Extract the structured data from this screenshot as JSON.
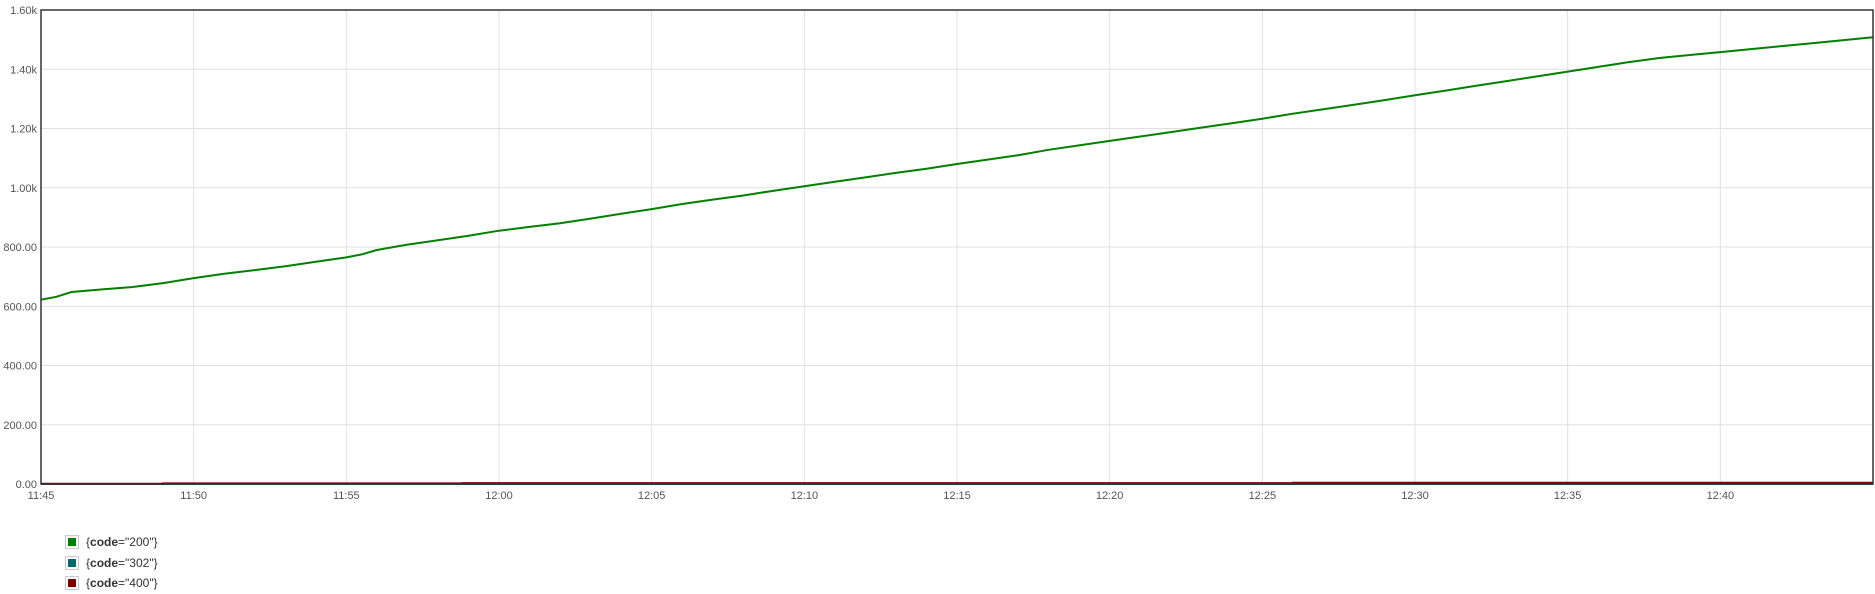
{
  "chart_data": {
    "type": "line",
    "x_ticks": [
      "11:45",
      "11:50",
      "11:55",
      "12:00",
      "12:05",
      "12:10",
      "12:15",
      "12:20",
      "12:25",
      "12:30",
      "12:35",
      "12:40"
    ],
    "y_ticks": [
      "0.00",
      "200.00",
      "400.00",
      "600.00",
      "800.00",
      "1.00k",
      "1.20k",
      "1.40k",
      "1.60k"
    ],
    "xlim_minutes": [
      0,
      60
    ],
    "ylim": [
      0,
      1600
    ],
    "grid": true,
    "legend_placement": "bottom-left",
    "series": [
      {
        "label_key": "code",
        "label_value": "\"200\"",
        "color": "#008000",
        "points": [
          [
            0,
            622
          ],
          [
            0.5,
            632
          ],
          [
            1,
            648
          ],
          [
            2,
            657
          ],
          [
            3,
            665
          ],
          [
            4,
            678
          ],
          [
            5,
            695
          ],
          [
            6,
            710
          ],
          [
            7,
            722
          ],
          [
            8,
            735
          ],
          [
            9,
            750
          ],
          [
            10,
            765
          ],
          [
            10.5,
            775
          ],
          [
            11,
            790
          ],
          [
            12,
            808
          ],
          [
            13,
            823
          ],
          [
            14,
            838
          ],
          [
            15,
            855
          ],
          [
            16,
            868
          ],
          [
            17,
            880
          ],
          [
            18,
            896
          ],
          [
            19,
            912
          ],
          [
            20,
            928
          ],
          [
            21,
            945
          ],
          [
            22,
            960
          ],
          [
            23,
            974
          ],
          [
            24,
            990
          ],
          [
            25,
            1005
          ],
          [
            26,
            1020
          ],
          [
            27,
            1035
          ],
          [
            28,
            1050
          ],
          [
            29,
            1064
          ],
          [
            30,
            1080
          ],
          [
            31,
            1095
          ],
          [
            32,
            1110
          ],
          [
            33,
            1128
          ],
          [
            34,
            1143
          ],
          [
            35,
            1158
          ],
          [
            36,
            1173
          ],
          [
            37,
            1188
          ],
          [
            38,
            1203
          ],
          [
            39,
            1218
          ],
          [
            40,
            1233
          ],
          [
            41,
            1250
          ],
          [
            42,
            1265
          ],
          [
            43,
            1280
          ],
          [
            44,
            1296
          ],
          [
            45,
            1312
          ],
          [
            46,
            1328
          ],
          [
            47,
            1344
          ],
          [
            48,
            1360
          ],
          [
            49,
            1376
          ],
          [
            50,
            1392
          ],
          [
            51,
            1408
          ],
          [
            52,
            1424
          ],
          [
            53,
            1438
          ],
          [
            54,
            1448
          ],
          [
            55,
            1458
          ],
          [
            56,
            1468
          ],
          [
            57,
            1478
          ],
          [
            58,
            1488
          ],
          [
            59,
            1498
          ],
          [
            60,
            1508
          ]
        ]
      },
      {
        "label_key": "code",
        "label_value": "\"302\"",
        "color": "#00676b",
        "points": [
          [
            0,
            0
          ],
          [
            60,
            0
          ]
        ]
      },
      {
        "label_key": "code",
        "label_value": "\"400\"",
        "color": "#800000",
        "points": [
          [
            0,
            1
          ],
          [
            4,
            2
          ],
          [
            13.8,
            3
          ],
          [
            41,
            4
          ],
          [
            60,
            4
          ]
        ]
      }
    ]
  }
}
